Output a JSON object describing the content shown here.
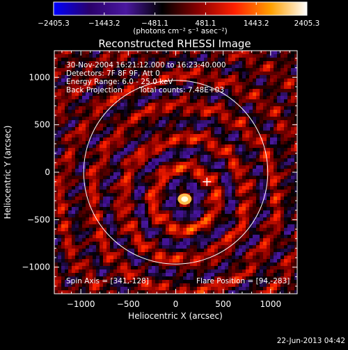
{
  "chart_data": {
    "type": "heatmap",
    "title": "Reconstructed RHESSI Image",
    "xlabel": "Heliocentric X (arcsec)",
    "ylabel": "Heliocentric Y (arcsec)",
    "xlim": [
      -1280,
      1280
    ],
    "ylim": [
      -1280,
      1280
    ],
    "x_ticks": [
      -1000,
      -500,
      0,
      500,
      1000
    ],
    "y_ticks": [
      -1000,
      -500,
      0,
      500,
      1000
    ],
    "x_tick_labels": [
      "−1000",
      "−500",
      "0",
      "500",
      "1000"
    ],
    "y_tick_labels": [
      "−1000",
      "−500",
      "0",
      "500",
      "1000"
    ],
    "solar_radius_arcsec": 970,
    "flare_position": [
      94,
      -283
    ],
    "colorbar": {
      "min": -2405.3,
      "max": 2405.3,
      "ticks": [
        -2405.3,
        -1443.2,
        -481.1,
        481.1,
        1443.2,
        2405.3
      ],
      "tick_labels": [
        "−2405.3",
        "−1443.2",
        "−481.1",
        "481.1",
        "1443.2",
        "2405.3"
      ],
      "unit": "(photons cm⁻² s⁻¹ asec⁻²)"
    },
    "annotations": {
      "time_range": "30-Nov-2004 16:21:12.000 to 16:23:40.000",
      "detectors": "Detectors: 7F 8F 9F, Att 0",
      "energy": "Energy Range: 6.0 - 25.0 keV",
      "method": "Back Projection",
      "counts": "Total counts: 7.48E+03",
      "spin_axis": "Spin Axis = [341,-128]",
      "flare_pos": "Flare Position = [94,-283]"
    },
    "footer_date": "22-Jun-2013 04:42",
    "colors": {
      "colormap": [
        "#0000ff",
        "#2a006a",
        "#4a18a0",
        "#000000",
        "#8a0000",
        "#ff2000",
        "#ffa000",
        "#ffffff"
      ],
      "limb_circle": "#ffffff"
    }
  }
}
